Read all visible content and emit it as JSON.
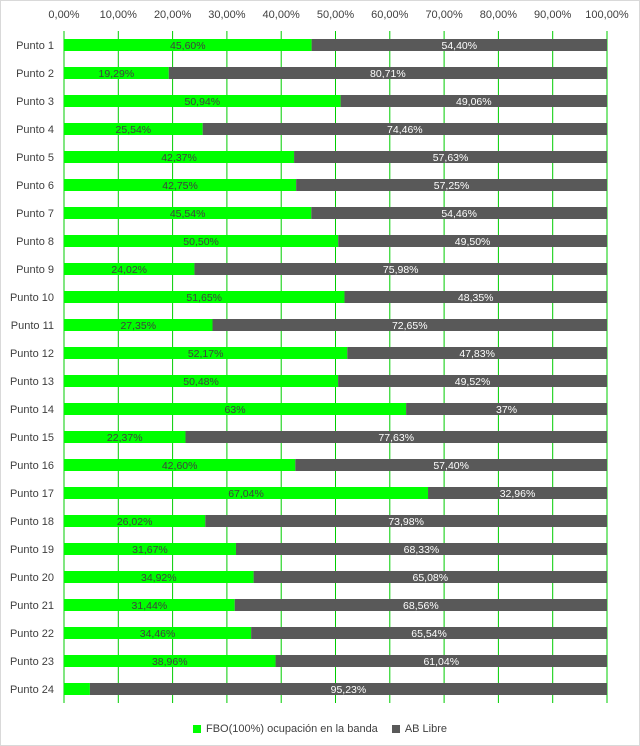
{
  "chart_data": {
    "type": "bar",
    "orientation": "horizontal",
    "stacked": true,
    "categories": [
      "Punto 1",
      "Punto 2",
      "Punto 3",
      "Punto 4",
      "Punto 5",
      "Punto 6",
      "Punto 7",
      "Punto 8",
      "Punto 9",
      "Punto 10",
      "Punto 11",
      "Punto 12",
      "Punto 13",
      "Punto 14",
      "Punto 15",
      "Punto 16",
      "Punto 17",
      "Punto 18",
      "Punto 19",
      "Punto 20",
      "Punto 21",
      "Punto 22",
      "Punto 23",
      "Punto 24"
    ],
    "series": [
      {
        "name": "FBO(100%) ocupación en la banda",
        "color": "#00ff00",
        "values": [
          45.6,
          19.29,
          50.94,
          25.54,
          42.37,
          42.75,
          45.54,
          50.5,
          24.02,
          51.65,
          27.35,
          52.17,
          50.48,
          63,
          22.37,
          42.6,
          67.04,
          26.02,
          31.67,
          34.92,
          31.44,
          34.46,
          38.96,
          4.77
        ],
        "labels": [
          "45,60%",
          "19,29%",
          "50,94%",
          "25,54%",
          "42,37%",
          "42,75%",
          "45,54%",
          "50,50%",
          "24,02%",
          "51,65%",
          "27,35%",
          "52,17%",
          "50,48%",
          "63%",
          "22,37%",
          "42,60%",
          "67,04%",
          "26,02%",
          "31,67%",
          "34,92%",
          "31,44%",
          "34,46%",
          "38,96%",
          ""
        ]
      },
      {
        "name": "AB Libre",
        "color": "#595959",
        "values": [
          54.4,
          80.71,
          49.06,
          74.46,
          57.63,
          57.25,
          54.46,
          49.5,
          75.98,
          48.35,
          72.65,
          47.83,
          49.52,
          37,
          77.63,
          57.4,
          32.96,
          73.98,
          68.33,
          65.08,
          68.56,
          65.54,
          61.04,
          95.23
        ],
        "labels": [
          "54,40%",
          "80,71%",
          "49,06%",
          "74,46%",
          "57,63%",
          "57,25%",
          "54,46%",
          "49,50%",
          "75,98%",
          "48,35%",
          "72,65%",
          "47,83%",
          "49,52%",
          "37%",
          "77,63%",
          "57,40%",
          "32,96%",
          "73,98%",
          "68,33%",
          "65,08%",
          "68,56%",
          "65,54%",
          "61,04%",
          "95,23%"
        ]
      }
    ],
    "xlim": [
      0,
      100
    ],
    "xticks": [
      0,
      10,
      20,
      30,
      40,
      50,
      60,
      70,
      80,
      90,
      100
    ],
    "xtick_labels": [
      "0,00%",
      "10,00%",
      "20,00%",
      "30,00%",
      "40,00%",
      "50,00%",
      "60,00%",
      "70,00%",
      "80,00%",
      "90,00%",
      "100,00%"
    ],
    "x_axis_position": "top",
    "grid": true,
    "grid_color": "#00cc00",
    "legend_position": "bottom",
    "title": "",
    "xlabel": "",
    "ylabel": ""
  }
}
